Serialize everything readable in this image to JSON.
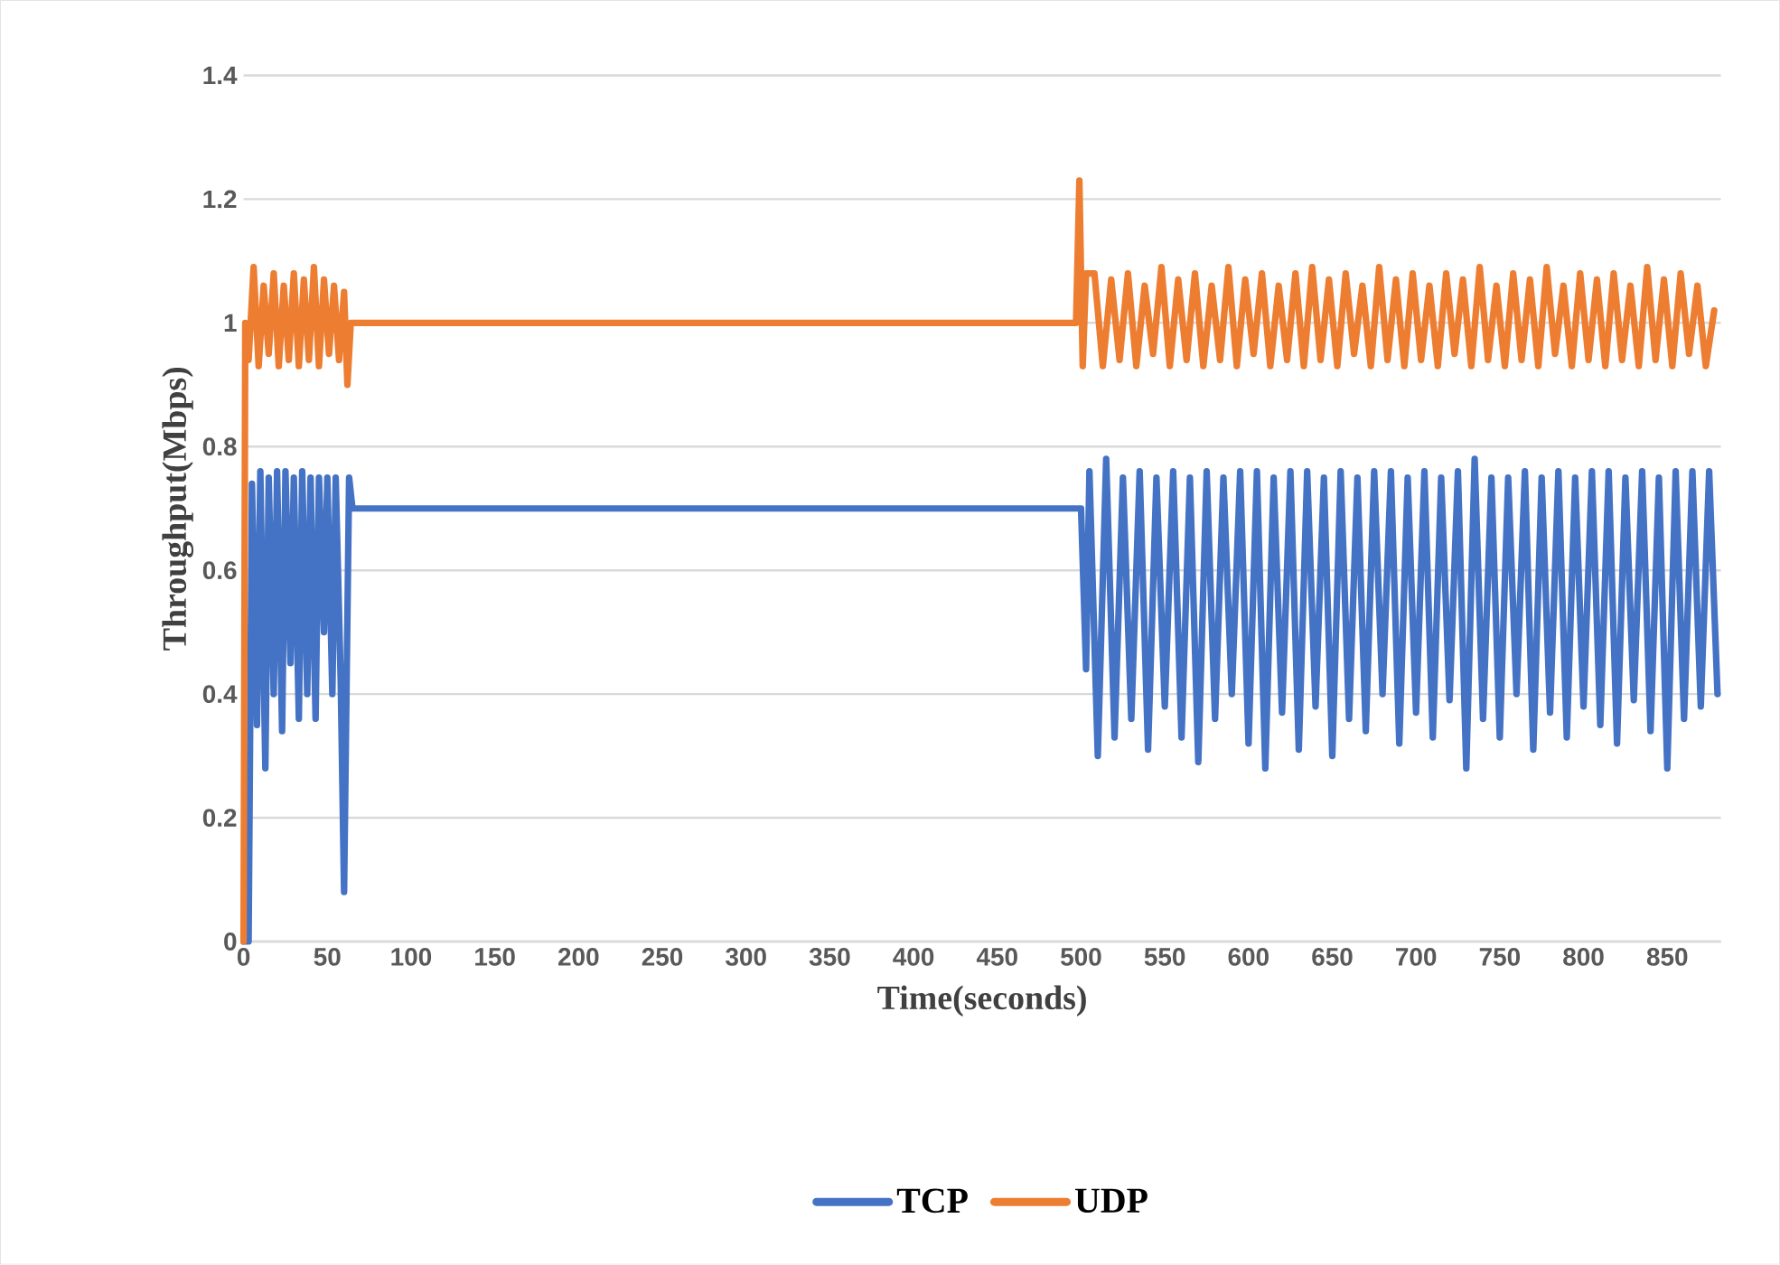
{
  "chart_data": {
    "type": "line",
    "xlabel": "Time(seconds)",
    "ylabel": "Throughput(Mbps)",
    "xlim": [
      0,
      882
    ],
    "ylim": [
      0,
      1.4
    ],
    "xticks": [
      0,
      50,
      100,
      150,
      200,
      250,
      300,
      350,
      400,
      450,
      500,
      550,
      600,
      650,
      700,
      750,
      800,
      850
    ],
    "yticks": [
      0,
      0.2,
      0.4,
      0.6,
      0.8,
      1,
      1.2,
      1.4
    ],
    "grid": "y",
    "legend": "bottom",
    "series": [
      {
        "name": "TCP",
        "color": "#4472c4",
        "x": [
          0,
          3,
          5,
          8,
          10,
          13,
          15,
          18,
          20,
          23,
          25,
          28,
          30,
          33,
          35,
          38,
          40,
          43,
          45,
          48,
          50,
          53,
          55,
          58,
          60,
          63,
          65,
          100,
          497,
          500,
          503,
          505,
          510,
          515,
          520,
          525,
          530,
          535,
          540,
          545,
          550,
          555,
          560,
          565,
          570,
          575,
          580,
          585,
          590,
          595,
          600,
          605,
          610,
          615,
          620,
          625,
          630,
          635,
          640,
          645,
          650,
          655,
          660,
          665,
          670,
          675,
          680,
          685,
          690,
          695,
          700,
          705,
          710,
          715,
          720,
          725,
          730,
          735,
          740,
          745,
          750,
          755,
          760,
          765,
          770,
          775,
          780,
          785,
          790,
          795,
          800,
          805,
          810,
          815,
          820,
          825,
          830,
          835,
          840,
          845,
          850,
          855,
          860,
          865,
          870,
          875,
          880
        ],
        "values": [
          0,
          0,
          0.74,
          0.35,
          0.76,
          0.28,
          0.75,
          0.4,
          0.76,
          0.34,
          0.76,
          0.45,
          0.75,
          0.36,
          0.76,
          0.4,
          0.75,
          0.36,
          0.75,
          0.5,
          0.75,
          0.4,
          0.75,
          0.42,
          0.08,
          0.75,
          0.7,
          0.7,
          0.7,
          0.7,
          0.44,
          0.76,
          0.3,
          0.78,
          0.33,
          0.75,
          0.36,
          0.76,
          0.31,
          0.75,
          0.38,
          0.76,
          0.33,
          0.75,
          0.29,
          0.76,
          0.36,
          0.75,
          0.4,
          0.76,
          0.32,
          0.76,
          0.28,
          0.75,
          0.37,
          0.76,
          0.31,
          0.76,
          0.38,
          0.75,
          0.3,
          0.76,
          0.36,
          0.75,
          0.34,
          0.76,
          0.4,
          0.76,
          0.32,
          0.75,
          0.37,
          0.76,
          0.33,
          0.75,
          0.39,
          0.76,
          0.28,
          0.78,
          0.36,
          0.75,
          0.33,
          0.75,
          0.4,
          0.76,
          0.31,
          0.75,
          0.37,
          0.76,
          0.33,
          0.75,
          0.38,
          0.76,
          0.35,
          0.76,
          0.32,
          0.75,
          0.39,
          0.76,
          0.34,
          0.75,
          0.28,
          0.76,
          0.36,
          0.76,
          0.38,
          0.76,
          0.4
        ]
      },
      {
        "name": "UDP",
        "color": "#ed7d31",
        "x": [
          0,
          1,
          3,
          6,
          9,
          12,
          15,
          18,
          21,
          24,
          27,
          30,
          33,
          36,
          39,
          42,
          45,
          48,
          51,
          54,
          57,
          60,
          62,
          64,
          66,
          100,
          497,
          499,
          501,
          503,
          508,
          513,
          518,
          523,
          528,
          533,
          538,
          543,
          548,
          553,
          558,
          563,
          568,
          573,
          578,
          583,
          588,
          593,
          598,
          603,
          608,
          613,
          618,
          623,
          628,
          633,
          638,
          643,
          648,
          653,
          658,
          663,
          668,
          673,
          678,
          683,
          688,
          693,
          698,
          703,
          708,
          713,
          718,
          723,
          728,
          733,
          738,
          743,
          748,
          753,
          758,
          763,
          768,
          773,
          778,
          783,
          788,
          793,
          798,
          803,
          808,
          813,
          818,
          823,
          828,
          833,
          838,
          843,
          848,
          853,
          858,
          863,
          868,
          873,
          878
        ],
        "values": [
          0,
          1,
          0.94,
          1.09,
          0.93,
          1.06,
          0.95,
          1.08,
          0.93,
          1.06,
          0.94,
          1.08,
          0.93,
          1.07,
          0.94,
          1.09,
          0.93,
          1.07,
          0.95,
          1.06,
          0.94,
          1.05,
          0.9,
          1,
          1,
          1,
          1,
          1.23,
          0.93,
          1.08,
          1.08,
          0.93,
          1.07,
          0.94,
          1.08,
          0.93,
          1.06,
          0.95,
          1.09,
          0.93,
          1.07,
          0.94,
          1.08,
          0.93,
          1.06,
          0.94,
          1.09,
          0.93,
          1.07,
          0.95,
          1.08,
          0.93,
          1.06,
          0.94,
          1.08,
          0.93,
          1.09,
          0.94,
          1.07,
          0.93,
          1.08,
          0.95,
          1.06,
          0.93,
          1.09,
          0.94,
          1.07,
          0.93,
          1.08,
          0.94,
          1.06,
          0.93,
          1.08,
          0.95,
          1.07,
          0.93,
          1.09,
          0.94,
          1.06,
          0.93,
          1.08,
          0.94,
          1.07,
          0.93,
          1.09,
          0.95,
          1.06,
          0.93,
          1.08,
          0.94,
          1.07,
          0.93,
          1.08,
          0.94,
          1.06,
          0.93,
          1.09,
          0.94,
          1.07,
          0.93,
          1.08,
          0.95,
          1.06,
          0.93,
          1.02
        ]
      }
    ]
  }
}
